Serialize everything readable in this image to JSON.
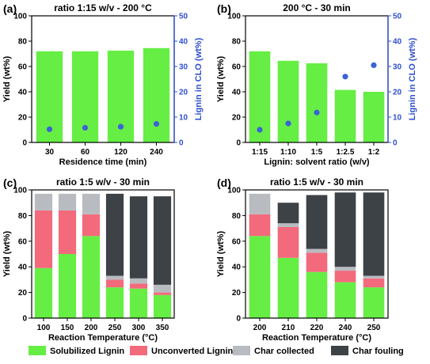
{
  "colors": {
    "solubilized": "#66ee44",
    "unconverted": "#f26a7c",
    "char_collected": "#b8bcc0",
    "char_fouling": "#3d4247",
    "points": "#3a63d6",
    "right_axis": "#2f4fd0"
  },
  "legend": [
    "Solubilized Lignin",
    "Unconverted Lignin",
    "Char collected",
    "Char fouling"
  ],
  "chart_data": [
    {
      "panel": "(a)",
      "type": "bar",
      "title": "ratio 1:15 w/v - 200 °C",
      "xlabel": "Residence time (min)",
      "ylabel": "Yield (wt%)",
      "ylabel_right": "Lignin in CLO (wt%)",
      "categories": [
        "30",
        "60",
        "120",
        "240"
      ],
      "ylim": [
        0,
        100
      ],
      "yticks": [
        0,
        20,
        40,
        60,
        80,
        100
      ],
      "ylim_right": [
        0,
        50
      ],
      "yticks_right": [
        0,
        10,
        20,
        30,
        40,
        50
      ],
      "bars": [
        72,
        72,
        72.5,
        74.5
      ],
      "points": [
        5.2,
        5.8,
        6.2,
        7.3
      ]
    },
    {
      "panel": "(b)",
      "type": "bar",
      "title": "200 °C - 30 min",
      "xlabel": "Lignin: solvent ratio (w/v)",
      "ylabel": "Yield (wt%)",
      "ylabel_right": "Lignin in CLO (wt%)",
      "categories": [
        "1:15",
        "1:10",
        "1:5",
        "1:2.5",
        "1:2"
      ],
      "ylim": [
        0,
        100
      ],
      "yticks": [
        0,
        20,
        40,
        60,
        80,
        100
      ],
      "ylim_right": [
        0,
        50
      ],
      "yticks_right": [
        0,
        10,
        20,
        30,
        40,
        50
      ],
      "bars": [
        72,
        64.5,
        62.5,
        41.5,
        40
      ],
      "points": [
        5,
        7.5,
        11.8,
        26,
        30.5
      ]
    },
    {
      "panel": "(c)",
      "type": "bar",
      "title": "ratio 1:5 w/v - 30 min",
      "xlabel": "Reaction Temperature (°C)",
      "ylabel": "Yield (wt%)",
      "categories": [
        "100",
        "150",
        "200",
        "250",
        "300",
        "350"
      ],
      "ylim": [
        0,
        100
      ],
      "yticks": [
        0,
        20,
        40,
        60,
        80,
        100
      ],
      "series": [
        {
          "name": "Solubilized Lignin",
          "values": [
            39,
            50,
            64,
            24,
            23,
            18
          ]
        },
        {
          "name": "Unconverted Lignin",
          "values": [
            45,
            34,
            17,
            6,
            4,
            2
          ]
        },
        {
          "name": "Char collected",
          "values": [
            13,
            13,
            16,
            3,
            4,
            6
          ]
        },
        {
          "name": "Char fouling",
          "values": [
            0,
            0,
            0,
            64,
            64,
            69
          ]
        }
      ]
    },
    {
      "panel": "(d)",
      "type": "bar",
      "title": "ratio 1:5 w/v - 30 min",
      "xlabel": "Reaction Temperature (°C)",
      "ylabel": "Yield (wt%)",
      "categories": [
        "200",
        "210",
        "220",
        "240",
        "250"
      ],
      "ylim": [
        0,
        100
      ],
      "yticks": [
        0,
        20,
        40,
        60,
        80,
        100
      ],
      "series": [
        {
          "name": "Solubilized Lignin",
          "values": [
            64,
            47,
            36,
            28,
            24
          ]
        },
        {
          "name": "Unconverted Lignin",
          "values": [
            17,
            24,
            15,
            9,
            7
          ]
        },
        {
          "name": "Char collected",
          "values": [
            16,
            3,
            3,
            3,
            2
          ]
        },
        {
          "name": "Char fouling",
          "values": [
            0,
            16,
            42,
            58,
            65
          ]
        }
      ]
    }
  ]
}
